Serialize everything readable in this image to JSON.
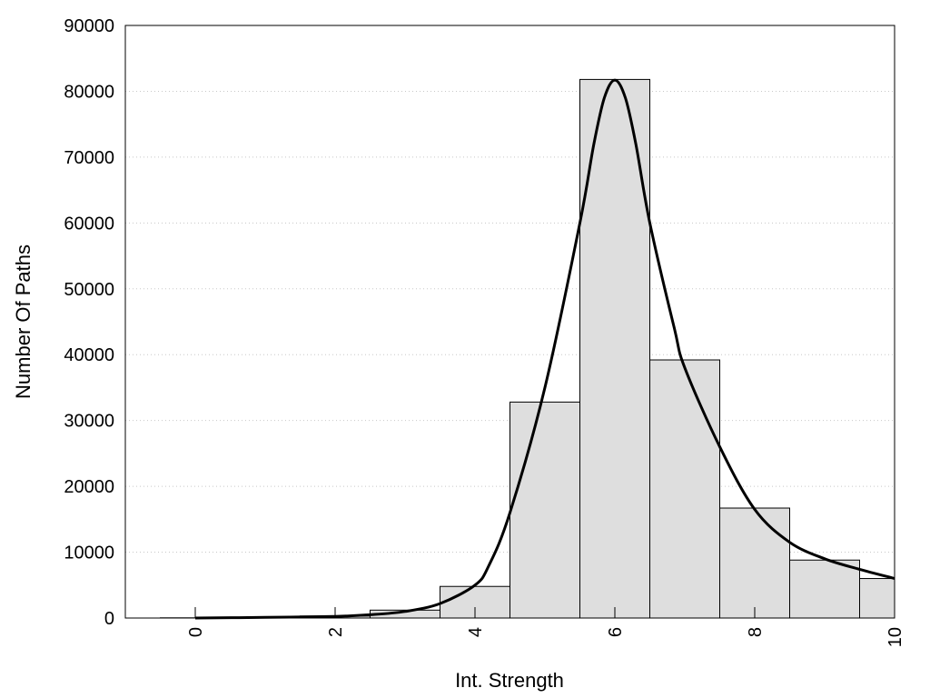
{
  "chart_data": {
    "type": "bar",
    "title": "",
    "xlabel": "Int. Strength",
    "ylabel": "Number Of Paths",
    "xlim": [
      -1,
      10
    ],
    "ylim": [
      0,
      90000
    ],
    "x_ticks": [
      "0",
      "2",
      "4",
      "6",
      "8",
      "10"
    ],
    "y_ticks": [
      "0",
      "10000",
      "20000",
      "30000",
      "40000",
      "50000",
      "60000",
      "70000",
      "80000",
      "90000"
    ],
    "grid": "horizontal dotted",
    "bar_fill": "#dedede",
    "bar_edge": "#000000",
    "bins": [
      {
        "x": 0,
        "value": 30
      },
      {
        "x": 1,
        "value": 80
      },
      {
        "x": 2,
        "value": 300
      },
      {
        "x": 3,
        "value": 1200
      },
      {
        "x": 4,
        "value": 4800
      },
      {
        "x": 5,
        "value": 32800
      },
      {
        "x": 6,
        "value": 81800
      },
      {
        "x": 7,
        "value": 39200
      },
      {
        "x": 8,
        "value": 16700
      },
      {
        "x": 9,
        "value": 8800
      },
      {
        "x": 10,
        "value": 6000
      }
    ],
    "curve": {
      "color": "#000000",
      "points": [
        [
          0,
          0
        ],
        [
          1,
          100
        ],
        [
          2,
          250
        ],
        [
          2.5,
          500
        ],
        [
          3,
          1000
        ],
        [
          3.5,
          2200
        ],
        [
          4,
          5000
        ],
        [
          4.2,
          8000
        ],
        [
          4.5,
          16000
        ],
        [
          5,
          35000
        ],
        [
          5.5,
          60000
        ],
        [
          5.7,
          72000
        ],
        [
          5.85,
          79000
        ],
        [
          6,
          81700
        ],
        [
          6.15,
          79000
        ],
        [
          6.3,
          72000
        ],
        [
          6.5,
          60000
        ],
        [
          6.85,
          44000
        ],
        [
          7,
          38000
        ],
        [
          7.5,
          26000
        ],
        [
          8,
          16500
        ],
        [
          8.5,
          11500
        ],
        [
          9,
          9000
        ],
        [
          9.5,
          7400
        ],
        [
          10,
          6000
        ]
      ]
    }
  }
}
